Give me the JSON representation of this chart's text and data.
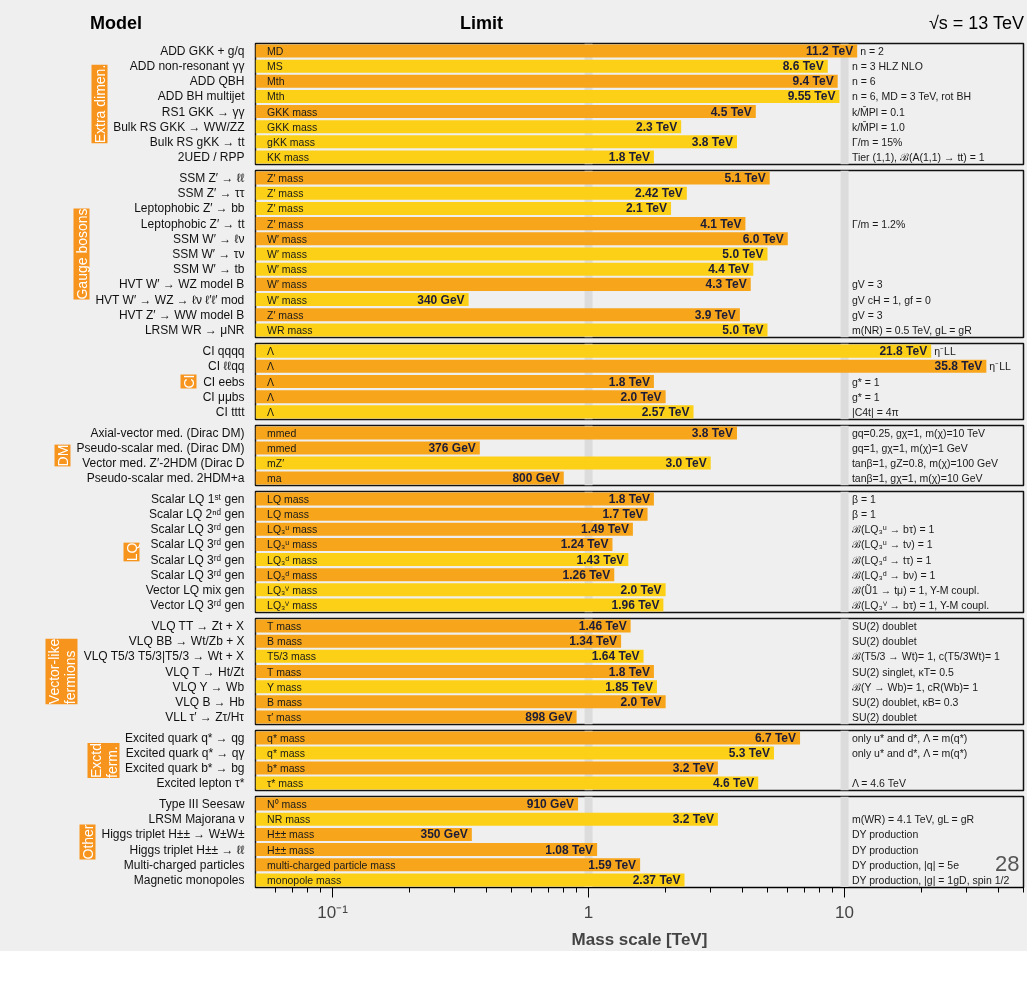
{
  "chart_data": [
    {
      "type": "bar",
      "orientation": "horizontal",
      "log": "x",
      "title": "Extra dimen.",
      "tick_labels": "y",
      "xlim": [
        0.05,
        50
      ],
      "categories": [
        "ADD GKK + g/q",
        "ADD non-resonant γγ",
        "ADD QBH",
        "ADD BH multijet",
        "RS1 GKK → γγ",
        "Bulk RS GKK → WW/ZZ",
        "Bulk RS gKK → tt",
        "2UED / RPP"
      ],
      "values": [
        11.2,
        8.6,
        9.4,
        9.55,
        4.5,
        2.3,
        3.8,
        1.8
      ],
      "colors": [
        "#f7a61b",
        "#fcd016",
        "#f7a61b",
        "#fcd016",
        "#f7a61b",
        "#fcd016",
        "#fcd016",
        "#fcd016"
      ],
      "value_labels": [
        "11.2 TeV",
        "8.6 TeV",
        "9.4 TeV",
        "9.55 TeV",
        "4.5 TeV",
        "2.3 TeV",
        "3.8 TeV",
        "1.8 TeV"
      ],
      "ref_lines": [
        {
          "axis": "x",
          "value": 1,
          "color": "#dcdcdc"
        },
        {
          "axis": "x",
          "value": 10,
          "color": "#dcdcdc"
        }
      ],
      "annotations": [
        "Model",
        "Limit",
        "√s = 13 TeV",
        {
          "text": "MD",
          "x": 0.054,
          "y": "ADD GKK + g/q"
        },
        {
          "text": "MS",
          "x": 0.054,
          "y": "ADD non-resonant γγ"
        },
        {
          "text": "Mth",
          "x": 0.054,
          "y": "ADD QBH"
        },
        {
          "text": "Mth",
          "x": 0.054,
          "y": "ADD BH multijet"
        },
        {
          "text": "GKK mass",
          "x": 0.054,
          "y": "RS1 GKK → γγ"
        },
        {
          "text": "GKK mass",
          "x": 0.054,
          "y": "Bulk RS GKK → WW/ZZ"
        },
        {
          "text": "gKK mass",
          "x": 0.054,
          "y": "Bulk RS gKK → tt"
        },
        {
          "text": "KK mass",
          "x": 0.054,
          "y": "2UED / RPP"
        },
        {
          "text": "n = 2",
          "x": 11.2,
          "y": "ADD GKK + g/q"
        },
        {
          "text": "n = 3 HLZ NLO",
          "x": 10.4,
          "y": "ADD non-resonant γγ"
        },
        {
          "text": "n = 6",
          "x": 10.4,
          "y": "ADD QBH"
        },
        {
          "text": "n = 6, MD = 3 TeV, rot BH",
          "x": 10.4,
          "y": "ADD BH multijet"
        },
        {
          "text": "k/M̄Pl = 0.1",
          "x": 10.4,
          "y": "RS1 GKK → γγ"
        },
        {
          "text": "k/M̄Pl = 1.0",
          "x": 10.4,
          "y": "Bulk RS GKK → WW/ZZ"
        },
        {
          "text": "Γ/m = 15%",
          "x": 10.4,
          "y": "Bulk RS gKK → tt"
        },
        {
          "text": "Tier (1,1), ℬ(A(1,1) → tt) = 1",
          "x": 10.4,
          "y": "2UED / RPP"
        }
      ]
    },
    {
      "type": "bar",
      "orientation": "horizontal",
      "log": "x",
      "title": "Gauge bosons",
      "tick_labels": "y",
      "xlim": [
        0.05,
        50
      ],
      "categories": [
        "SSM Z′ → ℓℓ",
        "SSM Z′ → ττ",
        "Leptophobic Z′ → bb",
        "Leptophobic Z′ → tt",
        "SSM W′ → ℓν",
        "SSM W′ → τν",
        "SSM W′ → tb",
        "HVT W′ → WZ model B",
        "HVT W′ → WZ → ℓν ℓ′ℓ′ mod",
        "HVT Z′ → WW model B",
        "LRSM WR → μNR"
      ],
      "values": [
        5.1,
        2.42,
        2.1,
        4.1,
        6.0,
        5.0,
        4.4,
        4.3,
        0.34,
        3.9,
        5.0
      ],
      "colors": [
        "#f7a61b",
        "#fcd016",
        "#fcd016",
        "#f7a61b",
        "#f7a61b",
        "#fcd016",
        "#fcd016",
        "#f7a61b",
        "#fcd016",
        "#f7a61b",
        "#fcd016"
      ],
      "value_labels": [
        "5.1 TeV",
        "2.42 TeV",
        "2.1 TeV",
        "4.1 TeV",
        "6.0 TeV",
        "5.0 TeV",
        "4.4 TeV",
        "4.3 TeV",
        null,
        "3.9 TeV",
        "5.0 TeV"
      ],
      "ref_lines": [
        {
          "axis": "x",
          "value": 1,
          "color": "#dcdcdc"
        },
        {
          "axis": "x",
          "value": 10,
          "color": "#dcdcdc"
        }
      ],
      "annotations": [
        {
          "text": "340 GeV",
          "x": 0.34,
          "y": "HVT W′ → WZ → ℓν ℓ′ℓ′ mod"
        },
        {
          "text": "Z′ mass",
          "x": 0.054,
          "y": "SSM Z′ → ℓℓ"
        },
        {
          "text": "Z′ mass",
          "x": 0.054,
          "y": "SSM Z′ → ττ"
        },
        {
          "text": "Z′ mass",
          "x": 0.054,
          "y": "Leptophobic Z′ → bb"
        },
        {
          "text": "Z′ mass",
          "x": 0.054,
          "y": "Leptophobic Z′ → tt"
        },
        {
          "text": "W′ mass",
          "x": 0.054,
          "y": "SSM W′ → ℓν"
        },
        {
          "text": "W′ mass",
          "x": 0.054,
          "y": "SSM W′ → τν"
        },
        {
          "text": "W′ mass",
          "x": 0.054,
          "y": "SSM W′ → tb"
        },
        {
          "text": "W′ mass",
          "x": 0.054,
          "y": "HVT W′ → WZ model B"
        },
        {
          "text": "W′ mass",
          "x": 0.054,
          "y": "HVT W′ → WZ → ℓν ℓ′ℓ′ mod"
        },
        {
          "text": "Z′ mass",
          "x": 0.054,
          "y": "HVT Z′ → WW model B"
        },
        {
          "text": "WR mass",
          "x": 0.054,
          "y": "LRSM WR → μNR"
        },
        {
          "text": "Γ/m = 1.2%",
          "x": 10.4,
          "y": "Leptophobic Z′ → tt"
        },
        {
          "text": "gV = 3",
          "x": 10.4,
          "y": "HVT W′ → WZ model B"
        },
        {
          "text": "gV cH = 1, gf = 0",
          "x": 10.4,
          "y": "HVT W′ → WZ → ℓν ℓ′ℓ′ mod"
        },
        {
          "text": "gV = 3",
          "x": 10.4,
          "y": "HVT Z′ → WW model B"
        },
        {
          "text": "m(NR) = 0.5 TeV, gL = gR",
          "x": 10.4,
          "y": "LRSM WR → μNR"
        }
      ]
    },
    {
      "type": "bar",
      "orientation": "horizontal",
      "log": "x",
      "title": "CI",
      "tick_labels": "y",
      "xlim": [
        0.05,
        50
      ],
      "categories": [
        "CI qqqq",
        "CI ℓℓqq",
        "CI eebs",
        "CI μμbs",
        "CI tttt"
      ],
      "values": [
        21.8,
        35.8,
        1.8,
        2.0,
        2.57
      ],
      "colors": [
        "#fcd016",
        "#f7a61b",
        "#f7a61b",
        "#f7a61b",
        "#fcd016"
      ],
      "value_labels": [
        "21.8 TeV",
        "35.8 TeV",
        "1.8 TeV",
        "2.0 TeV",
        "2.57 TeV"
      ],
      "ref_lines": [
        {
          "axis": "x",
          "value": 1,
          "color": "#dcdcdc"
        },
        {
          "axis": "x",
          "value": 10,
          "color": "#dcdcdc"
        }
      ],
      "annotations": [
        {
          "text": "Λ",
          "x": 0.054,
          "y": "CI qqqq"
        },
        {
          "text": "Λ",
          "x": 0.054,
          "y": "CI ℓℓqq"
        },
        {
          "text": "Λ",
          "x": 0.054,
          "y": "CI eebs"
        },
        {
          "text": "Λ",
          "x": 0.054,
          "y": "CI μμbs"
        },
        {
          "text": "Λ",
          "x": 0.054,
          "y": "CI tttt"
        },
        {
          "text": "η⁻LL",
          "x": 21.8,
          "y": "CI qqqq"
        },
        {
          "text": "η⁻LL",
          "x": 35.8,
          "y": "CI ℓℓqq"
        },
        {
          "text": "g* = 1",
          "x": 10.4,
          "y": "CI eebs"
        },
        {
          "text": "g* = 1",
          "x": 10.4,
          "y": "CI μμbs"
        },
        {
          "text": "|C4t| = 4π",
          "x": 10.4,
          "y": "CI tttt"
        }
      ]
    },
    {
      "type": "bar",
      "orientation": "horizontal",
      "log": "x",
      "title": "DM",
      "tick_labels": "y",
      "xlim": [
        0.05,
        50
      ],
      "categories": [
        "Axial-vector med. (Dirac DM)",
        "Pseudo-scalar med. (Dirac DM)",
        "Vector med. Z′-2HDM (Dirac D",
        "Pseudo-scalar med. 2HDM+a"
      ],
      "values": [
        3.8,
        0.376,
        3.0,
        0.8
      ],
      "colors": [
        "#f7a61b",
        "#f7a61b",
        "#fcd016",
        "#f7a61b"
      ],
      "value_labels": [
        "3.8 TeV",
        null,
        "3.0 TeV",
        null
      ],
      "ref_lines": [
        {
          "axis": "x",
          "value": 1,
          "color": "#dcdcdc"
        },
        {
          "axis": "x",
          "value": 10,
          "color": "#dcdcdc"
        }
      ],
      "annotations": [
        {
          "text": "376 GeV",
          "x": 0.376,
          "y": "Pseudo-scalar med. (Dirac DM)"
        },
        {
          "text": "800 GeV",
          "x": 0.8,
          "y": "Pseudo-scalar med. 2HDM+a"
        },
        {
          "text": "mmed",
          "x": 0.054,
          "y": "Axial-vector med. (Dirac DM)"
        },
        {
          "text": "mmed",
          "x": 0.054,
          "y": "Pseudo-scalar med. (Dirac DM)"
        },
        {
          "text": "mZ′",
          "x": 0.054,
          "y": "Vector med. Z′-2HDM (Dirac D"
        },
        {
          "text": "ma",
          "x": 0.054,
          "y": "Pseudo-scalar med. 2HDM+a"
        },
        {
          "text": "gq=0.25, gχ=1, m(χ)=10 TeV",
          "x": 10.4,
          "y": "Axial-vector med. (Dirac DM)"
        },
        {
          "text": "gq=1, gχ=1, m(χ)=1 GeV",
          "x": 10.4,
          "y": "Pseudo-scalar med. (Dirac DM)"
        },
        {
          "text": "tanβ=1, gZ=0.8, m(χ)=100 GeV",
          "x": 10.4,
          "y": "Vector med. Z′-2HDM (Dirac D"
        },
        {
          "text": "tanβ=1, gχ=1, m(χ)=10 GeV",
          "x": 10.4,
          "y": "Pseudo-scalar med. 2HDM+a"
        }
      ]
    },
    {
      "type": "bar",
      "orientation": "horizontal",
      "log": "x",
      "title": "LQ",
      "tick_labels": "y",
      "xlim": [
        0.05,
        50
      ],
      "categories": [
        "Scalar LQ 1ˢᵗ gen",
        "Scalar LQ 2ⁿᵈ gen",
        "Scalar LQ 3ʳᵈ gen",
        "Scalar LQ 3ʳᵈ gen",
        "Scalar LQ 3ʳᵈ gen",
        "Scalar LQ 3ʳᵈ gen",
        "Vector LQ mix gen",
        "Vector LQ 3ʳᵈ gen"
      ],
      "values": [
        1.8,
        1.7,
        1.49,
        1.24,
        1.43,
        1.26,
        2.0,
        1.96
      ],
      "colors": [
        "#f7a61b",
        "#f7a61b",
        "#f7a61b",
        "#f7a61b",
        "#fcd016",
        "#f7a61b",
        "#fcd016",
        "#fcd016"
      ],
      "value_labels": [
        "1.8 TeV",
        "1.7 TeV",
        "1.49 TeV",
        "1.24 TeV",
        "1.43 TeV",
        "1.26 TeV",
        "2.0 TeV",
        "1.96 TeV"
      ],
      "ref_lines": [
        {
          "axis": "x",
          "value": 1,
          "color": "#dcdcdc"
        },
        {
          "axis": "x",
          "value": 10,
          "color": "#dcdcdc"
        }
      ],
      "annotations": [
        {
          "text": "LQ mass",
          "x": 0.054,
          "y": "Scalar LQ 1ˢᵗ gen"
        },
        {
          "text": "LQ mass",
          "x": 0.054,
          "y": "Scalar LQ 2ⁿᵈ gen"
        },
        {
          "text": "LQ₃ᵘ mass",
          "x": 0.054,
          "y": "Scalar LQ 3ʳᵈ gen"
        },
        {
          "text": "LQ₃ᵘ mass",
          "x": 0.054,
          "y": "Scalar LQ 3ʳᵈ gen"
        },
        {
          "text": "LQ₃ᵈ mass",
          "x": 0.054,
          "y": "Scalar LQ 3ʳᵈ gen"
        },
        "LQ₃ᵈ mass",
        {
          "text": "LQ₃ⱽ mass",
          "x": 0.054,
          "y": "Vector LQ mix gen"
        },
        {
          "text": "LQ₃ⱽ mass",
          "x": 0.054,
          "y": "Vector LQ 3ʳᵈ gen"
        },
        {
          "text": "β = 1",
          "x": 10.4,
          "y": "Scalar LQ 1ˢᵗ gen"
        },
        {
          "text": "β = 1",
          "x": 10.4,
          "y": "Scalar LQ 2ⁿᵈ gen"
        },
        {
          "text": "ℬ(LQ₃ᵘ → bτ) = 1",
          "x": 10.4,
          "y": "Scalar LQ 3ʳᵈ gen"
        },
        {
          "text": "ℬ(LQ₃ᵘ → tν) = 1",
          "x": 10.4,
          "y": "Scalar LQ 3ʳᵈ gen"
        },
        {
          "text": "ℬ(LQ₃ᵈ → tτ) = 1",
          "x": 10.4,
          "y": "Scalar LQ 3ʳᵈ gen"
        },
        {
          "text": "ℬ(LQ₃ᵈ → bν) = 1",
          "x": 10.4
        },
        {
          "text": "ℬ(Ũ1 → tμ) = 1, Y-M coupl.",
          "x": 10.4,
          "y": "Vector LQ mix gen"
        },
        {
          "text": "ℬ(LQ₃ⱽ → bτ) = 1, Y-M coupl.",
          "x": 10.4,
          "y": "Vector LQ 3ʳᵈ gen"
        }
      ]
    },
    {
      "type": "bar",
      "orientation": "horizontal",
      "log": "x",
      "title": "Vector-like fermions",
      "tick_labels": "y",
      "xlim": [
        0.05,
        50
      ],
      "categories": [
        "VLQ TT → Zt + X",
        "VLQ BB → Wt/Zb + X",
        "VLQ T5/3 T5/3|T5/3 → Wt + X",
        "VLQ T → Ht/Zt",
        "VLQ Y → Wb",
        "VLQ B → Hb",
        "VLL τ′ → Zτ/Hτ"
      ],
      "values": [
        1.46,
        1.34,
        1.64,
        1.8,
        1.85,
        2.0,
        0.898
      ],
      "colors": [
        "#f7a61b",
        "#f7a61b",
        "#fcd016",
        "#f7a61b",
        "#fcd016",
        "#f7a61b",
        "#f7a61b"
      ],
      "value_labels": [
        "1.46 TeV",
        "1.34 TeV",
        "1.64 TeV",
        "1.8 TeV",
        "1.85 TeV",
        "2.0 TeV",
        null
      ],
      "ref_lines": [
        {
          "axis": "x",
          "value": 1,
          "color": "#dcdcdc"
        },
        {
          "axis": "x",
          "value": 10,
          "color": "#dcdcdc"
        }
      ],
      "annotations": [
        {
          "text": "898 GeV",
          "x": 0.898,
          "y": "VLL τ′ → Zτ/Hτ"
        },
        {
          "text": "T mass",
          "x": 0.054,
          "y": "VLQ TT → Zt + X"
        },
        {
          "text": "B mass",
          "x": 0.054,
          "y": "VLQ BB → Wt/Zb + X"
        },
        {
          "text": "T5/3 mass",
          "x": 0.054,
          "y": "VLQ T5/3 T5/3|T5/3 → Wt + X"
        },
        {
          "text": "T mass",
          "x": 0.054,
          "y": "VLQ T → Ht/Zt"
        },
        {
          "text": "Y mass",
          "x": 0.054,
          "y": "VLQ Y → Wb"
        },
        {
          "text": "B mass",
          "x": 0.054,
          "y": "VLQ B → Hb"
        },
        {
          "text": "τ′ mass",
          "x": 0.054,
          "y": "VLL τ′ → Zτ/Hτ"
        },
        {
          "text": "SU(2) doublet",
          "x": 10.4,
          "y": "VLQ TT → Zt + X"
        },
        {
          "text": "SU(2) doublet",
          "x": 10.4,
          "y": "VLQ BB → Wt/Zb + X"
        },
        {
          "text": "ℬ(T5/3 → Wt)= 1, c(T5/3Wt)= 1",
          "x": 10.4,
          "y": "VLQ T5/3 T5/3|T5/3 → Wt + X"
        },
        {
          "text": "SU(2) singlet, κT= 0.5",
          "x": 10.4,
          "y": "VLQ T → Ht/Zt"
        },
        {
          "text": "ℬ(Y → Wb)= 1, cR(Wb)= 1",
          "x": 10.4,
          "y": "VLQ Y → Wb"
        },
        {
          "text": "SU(2) doublet, κB= 0.3",
          "x": 10.4,
          "y": "VLQ B → Hb"
        },
        {
          "text": "SU(2) doublet",
          "x": 10.4,
          "y": "VLL τ′ → Zτ/Hτ"
        }
      ]
    },
    {
      "type": "bar",
      "orientation": "horizontal",
      "log": "x",
      "title": "Exctd ferm.",
      "tick_labels": "y",
      "xlim": [
        0.05,
        50
      ],
      "categories": [
        "Excited quark q* → qg",
        "Excited quark q* → qγ",
        "Excited quark b* → bg",
        "Excited lepton τ*"
      ],
      "values": [
        6.7,
        5.3,
        3.2,
        4.6
      ],
      "colors": [
        "#f7a61b",
        "#fcd016",
        "#f7a61b",
        "#fcd016"
      ],
      "value_labels": [
        "6.7 TeV",
        "5.3 TeV",
        "3.2 TeV",
        "4.6 TeV"
      ],
      "ref_lines": [
        {
          "axis": "x",
          "value": 1,
          "color": "#dcdcdc"
        },
        {
          "axis": "x",
          "value": 10,
          "color": "#dcdcdc"
        }
      ],
      "annotations": [
        {
          "text": "q* mass",
          "x": 0.054,
          "y": "Excited quark q* → qg"
        },
        {
          "text": "q* mass",
          "x": 0.054,
          "y": "Excited quark q* → qγ"
        },
        {
          "text": "b* mass",
          "x": 0.054,
          "y": "Excited quark b* → bg"
        },
        {
          "text": "τ* mass",
          "x": 0.054,
          "y": "Excited lepton τ*"
        },
        {
          "text": "only u* and d*, Λ = m(q*)",
          "x": 10.4,
          "y": "Excited quark q* → qg"
        },
        {
          "text": "only u* and d*, Λ = m(q*)",
          "x": 10.4,
          "y": "Excited quark q* → qγ"
        },
        {
          "text": "Λ = 4.6 TeV",
          "x": 10.4,
          "y": "Excited lepton τ*"
        }
      ]
    },
    {
      "type": "bar",
      "orientation": "horizontal",
      "log": "x",
      "title": "Other",
      "xlim": [
        0.05,
        50
      ],
      "xlabel": "Mass scale [TeV]",
      "xticks": [
        {
          "value": 0.06,
          "label": null
        },
        {
          "value": 0.07,
          "label": null
        },
        {
          "value": 0.08,
          "label": null
        },
        {
          "value": 0.09,
          "label": null
        },
        {
          "value": 0.1,
          "label": "10⁻¹"
        },
        {
          "value": 0.2,
          "label": null
        },
        {
          "value": 0.3,
          "label": null
        },
        {
          "value": 0.4,
          "label": null
        },
        {
          "value": 0.5,
          "label": null
        },
        {
          "value": 0.6,
          "label": null
        },
        {
          "value": 0.7,
          "label": null
        },
        {
          "value": 0.8,
          "label": null
        },
        {
          "value": 0.9,
          "label": null
        },
        1,
        {
          "value": 2,
          "label": null
        },
        {
          "value": 3,
          "label": null
        },
        {
          "value": 4,
          "label": null
        },
        {
          "value": 5,
          "label": null
        },
        {
          "value": 6,
          "label": null
        },
        {
          "value": 7,
          "label": null
        },
        {
          "value": 8,
          "label": null
        },
        {
          "value": 9,
          "label": null
        },
        10,
        {
          "value": 20,
          "label": null
        },
        {
          "value": 30,
          "label": null
        },
        {
          "value": 40,
          "label": null
        },
        {
          "value": 50,
          "label": null
        }
      ],
      "categories": [
        "Type III Seesaw",
        "LRSM Majorana ν",
        "Higgs triplet H±± → W±W±",
        "Higgs triplet H±± → ℓℓ",
        "Multi-charged particles",
        "Magnetic monopoles"
      ],
      "values": [
        0.91,
        3.2,
        0.35,
        1.08,
        1.59,
        2.37
      ],
      "colors": [
        "#f7a61b",
        "#fcd016",
        "#f7a61b",
        "#f7a61b",
        "#f7a61b",
        "#fcd016"
      ],
      "value_labels": [
        null,
        "3.2 TeV",
        null,
        "1.08 TeV",
        "1.59 TeV",
        "2.37 TeV"
      ],
      "ref_lines": [
        {
          "axis": "x",
          "value": 1,
          "color": "#dcdcdc"
        },
        {
          "axis": "x",
          "value": 10,
          "color": "#dcdcdc"
        }
      ],
      "annotations": [
        "28",
        {
          "text": "910 GeV",
          "x": 0.91,
          "y": "Type III Seesaw"
        },
        {
          "text": "350 GeV",
          "x": 0.35,
          "y": "Higgs triplet H±± → W±W±"
        },
        {
          "text": "N⁰ mass",
          "x": 0.054,
          "y": "Type III Seesaw"
        },
        {
          "text": "NR mass",
          "x": 0.054,
          "y": "LRSM Majorana ν"
        },
        {
          "text": "H±± mass",
          "x": 0.054,
          "y": "Higgs triplet H±± → W±W±"
        },
        {
          "text": "H±± mass",
          "x": 0.054,
          "y": "Higgs triplet H±± → ℓℓ"
        },
        {
          "text": "multi-charged particle mass",
          "x": 0.054,
          "y": "Multi-charged particles"
        },
        {
          "text": "monopole mass",
          "x": 0.054,
          "y": "Magnetic monopoles"
        },
        {
          "text": "m(WR) = 4.1 TeV, gL = gR",
          "x": 10.4,
          "y": "LRSM Majorana ν"
        },
        {
          "text": "DY production",
          "x": 10.4,
          "y": "Higgs triplet H±± → W±W±"
        },
        {
          "text": "DY production",
          "x": 10.4,
          "y": "Higgs triplet H±± → ℓℓ"
        },
        {
          "text": "DY production, |q| = 5e",
          "x": 10.4,
          "y": "Multi-charged particles"
        },
        {
          "text": "DY production, |g| = 1gD, spin 1/2",
          "x": 10.4,
          "y": "Magnetic monopoles"
        }
      ]
    }
  ]
}
